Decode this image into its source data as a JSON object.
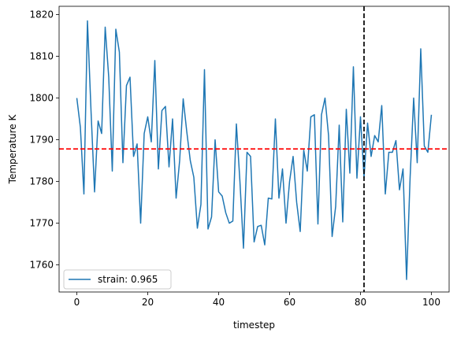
{
  "chart_data": {
    "type": "line",
    "xlabel": "timestep",
    "ylabel": "Temperature K",
    "xlim": [
      -5,
      105
    ],
    "ylim": [
      1753.5,
      1822
    ],
    "xticks": [
      0,
      20,
      40,
      60,
      80,
      100
    ],
    "yticks": [
      1760,
      1770,
      1780,
      1790,
      1800,
      1810,
      1820
    ],
    "grid": false,
    "legend_position": "lower-left",
    "series": [
      {
        "name": "strain: 0.965",
        "color": "#1f77b4",
        "x": [
          0,
          1,
          2,
          3,
          4,
          5,
          6,
          7,
          8,
          9,
          10,
          11,
          12,
          13,
          14,
          15,
          16,
          17,
          18,
          19,
          20,
          21,
          22,
          23,
          24,
          25,
          26,
          27,
          28,
          29,
          30,
          31,
          32,
          33,
          34,
          35,
          36,
          37,
          38,
          39,
          40,
          41,
          42,
          43,
          44,
          45,
          46,
          47,
          48,
          49,
          50,
          51,
          52,
          53,
          54,
          55,
          56,
          57,
          58,
          59,
          60,
          61,
          62,
          63,
          64,
          65,
          66,
          67,
          68,
          69,
          70,
          71,
          72,
          73,
          74,
          75,
          76,
          77,
          78,
          79,
          80,
          81,
          82,
          83,
          84,
          85,
          86,
          87,
          88,
          89,
          90,
          91,
          92,
          93,
          94,
          95,
          96,
          97,
          98,
          99,
          100
        ],
        "y": [
          1800,
          1793,
          1777,
          1818.5,
          1797,
          1777.5,
          1794.5,
          1791.5,
          1817,
          1805,
          1782.5,
          1816.5,
          1811,
          1784.5,
          1803,
          1805,
          1786,
          1789,
          1770,
          1791.5,
          1795.5,
          1789.5,
          1809,
          1783,
          1797,
          1798,
          1783.5,
          1795,
          1776,
          1785,
          1799.8,
          1792,
          1785,
          1781,
          1768.8,
          1774.5,
          1806.8,
          1768.6,
          1771.5,
          1790,
          1777.5,
          1776.5,
          1772.5,
          1770,
          1770.5,
          1793.8,
          1780,
          1764,
          1787,
          1786,
          1765.5,
          1769.2,
          1769.5,
          1764.8,
          1776,
          1775.8,
          1795,
          1776,
          1783,
          1770,
          1780,
          1786,
          1775,
          1768,
          1787.5,
          1782.5,
          1795.5,
          1796,
          1769.8,
          1796,
          1800,
          1791,
          1766.8,
          1774,
          1793.5,
          1770.3,
          1797.3,
          1782,
          1807.5,
          1780.8,
          1795.5,
          1781,
          1794,
          1786,
          1791,
          1789.5,
          1798.2,
          1777,
          1787,
          1787,
          1789.8,
          1778,
          1783,
          1756.5,
          1781,
          1800,
          1784.5,
          1811.8,
          1788.5,
          1787,
          1796
        ]
      }
    ],
    "reference_lines": [
      {
        "orientation": "horizontal",
        "value": 1787.8,
        "color": "#ff0000",
        "style": "dashed"
      },
      {
        "orientation": "vertical",
        "value": 81,
        "color": "#000000",
        "style": "dashed"
      }
    ]
  }
}
